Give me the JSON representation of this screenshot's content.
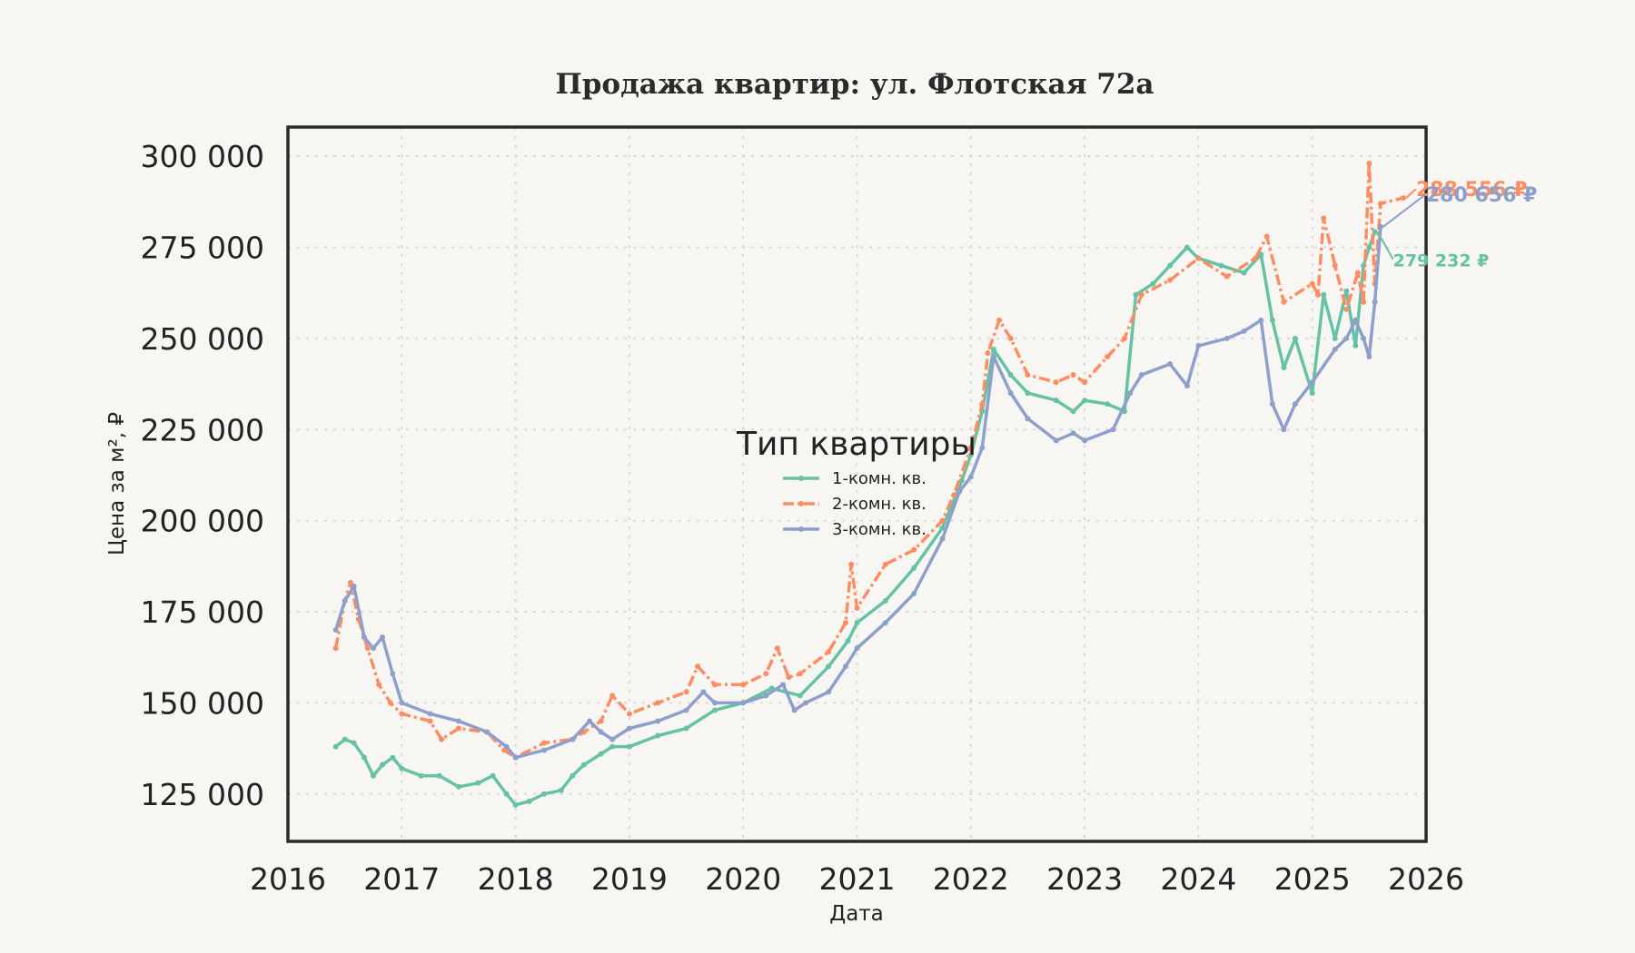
{
  "chart_data": {
    "type": "line",
    "title": "Продажа квартир: ул. Флотская 72а",
    "xlabel": "Дата",
    "ylabel": "Цена за м², ₽",
    "xlim": [
      2016,
      2026
    ],
    "ylim": [
      112000,
      308000
    ],
    "grid": true,
    "legend_position": "center",
    "legend_title": "Тип квартиры",
    "x_ticks": [
      "2016",
      "2017",
      "2018",
      "2019",
      "2020",
      "2021",
      "2022",
      "2023",
      "2024",
      "2025",
      "2026"
    ],
    "x_tick_values": [
      2016,
      2017,
      2018,
      2019,
      2020,
      2021,
      2022,
      2023,
      2024,
      2025,
      2026
    ],
    "y_ticks": [
      "125 000",
      "150 000",
      "175 000",
      "200 000",
      "225 000",
      "250 000",
      "275 000",
      "300 000"
    ],
    "y_tick_values": [
      125000,
      150000,
      175000,
      200000,
      225000,
      250000,
      275000,
      300000
    ],
    "series": [
      {
        "name": "1-комн. кв.",
        "color": "#66c2a5",
        "dash": "solid",
        "x": [
          2016.42,
          2016.5,
          2016.58,
          2016.67,
          2016.75,
          2016.83,
          2016.92,
          2017.0,
          2017.17,
          2017.33,
          2017.5,
          2017.67,
          2017.8,
          2017.92,
          2018.0,
          2018.12,
          2018.25,
          2018.4,
          2018.5,
          2018.6,
          2018.75,
          2018.85,
          2019.0,
          2019.25,
          2019.5,
          2019.75,
          2020.0,
          2020.25,
          2020.5,
          2020.75,
          2020.92,
          2021.0,
          2021.25,
          2021.5,
          2021.75,
          2021.92,
          2022.0,
          2022.1,
          2022.2,
          2022.35,
          2022.5,
          2022.75,
          2022.9,
          2023.0,
          2023.2,
          2023.35,
          2023.45,
          2023.6,
          2023.75,
          2023.9,
          2024.0,
          2024.2,
          2024.4,
          2024.55,
          2024.65,
          2024.75,
          2024.85,
          2025.0,
          2025.1,
          2025.2,
          2025.3,
          2025.38,
          2025.45,
          2025.5,
          2025.55
        ],
        "y": [
          138000,
          140000,
          139000,
          135000,
          130000,
          133000,
          135000,
          132000,
          130000,
          130000,
          127000,
          128000,
          130000,
          125000,
          122000,
          123000,
          125000,
          126000,
          130000,
          133000,
          136000,
          138000,
          138000,
          141000,
          143000,
          148000,
          150000,
          154000,
          152000,
          160000,
          167000,
          172000,
          178000,
          187000,
          198000,
          211000,
          218000,
          230000,
          247000,
          240000,
          235000,
          233000,
          230000,
          233000,
          232000,
          230000,
          262000,
          265000,
          270000,
          275000,
          272000,
          270000,
          268000,
          273000,
          255000,
          242000,
          250000,
          235000,
          262000,
          250000,
          263000,
          248000,
          270000,
          275000,
          279232
        ]
      },
      {
        "name": "2-комн. кв.",
        "color": "#fc8d62",
        "dash": "dashdot",
        "x": [
          2016.42,
          2016.5,
          2016.55,
          2016.62,
          2016.7,
          2016.8,
          2016.9,
          2017.0,
          2017.25,
          2017.35,
          2017.5,
          2017.75,
          2017.9,
          2018.0,
          2018.25,
          2018.5,
          2018.6,
          2018.75,
          2018.85,
          2019.0,
          2019.25,
          2019.5,
          2019.6,
          2019.75,
          2020.0,
          2020.2,
          2020.3,
          2020.4,
          2020.5,
          2020.75,
          2020.9,
          2020.95,
          2021.0,
          2021.25,
          2021.5,
          2021.75,
          2021.85,
          2022.0,
          2022.1,
          2022.15,
          2022.25,
          2022.35,
          2022.5,
          2022.75,
          2022.9,
          2023.0,
          2023.2,
          2023.35,
          2023.5,
          2023.75,
          2024.0,
          2024.25,
          2024.5,
          2024.6,
          2024.75,
          2025.0,
          2025.05,
          2025.1,
          2025.2,
          2025.3,
          2025.4,
          2025.45,
          2025.5,
          2025.55,
          2025.6,
          2025.8
        ],
        "y": [
          165000,
          178000,
          183000,
          173000,
          165000,
          155000,
          150000,
          147000,
          145000,
          140000,
          143000,
          142000,
          137000,
          135000,
          139000,
          140000,
          142000,
          145000,
          152000,
          147000,
          150000,
          153000,
          160000,
          155000,
          155000,
          158000,
          165000,
          157000,
          158000,
          164000,
          172000,
          188000,
          176000,
          188000,
          192000,
          200000,
          207000,
          220000,
          232000,
          246000,
          255000,
          250000,
          240000,
          238000,
          240000,
          238000,
          245000,
          250000,
          262000,
          266000,
          272000,
          267000,
          272000,
          278000,
          260000,
          265000,
          262000,
          283000,
          270000,
          258000,
          268000,
          260000,
          298000,
          265000,
          287000,
          288556
        ]
      },
      {
        "name": "3-комн. кв.",
        "color": "#8da0cb",
        "dash": "solid",
        "x": [
          2016.42,
          2016.5,
          2016.58,
          2016.67,
          2016.75,
          2016.83,
          2016.92,
          2017.0,
          2017.25,
          2017.5,
          2017.75,
          2017.92,
          2018.0,
          2018.25,
          2018.5,
          2018.65,
          2018.75,
          2018.85,
          2019.0,
          2019.25,
          2019.5,
          2019.65,
          2019.75,
          2020.0,
          2020.2,
          2020.35,
          2020.45,
          2020.55,
          2020.75,
          2020.9,
          2021.0,
          2021.25,
          2021.5,
          2021.75,
          2021.9,
          2022.0,
          2022.1,
          2022.2,
          2022.35,
          2022.5,
          2022.75,
          2022.9,
          2023.0,
          2023.25,
          2023.4,
          2023.5,
          2023.75,
          2023.9,
          2024.0,
          2024.25,
          2024.4,
          2024.55,
          2024.65,
          2024.75,
          2024.85,
          2025.0,
          2025.2,
          2025.3,
          2025.38,
          2025.45,
          2025.5,
          2025.55,
          2025.6
        ],
        "y": [
          170000,
          178000,
          182000,
          168000,
          165000,
          168000,
          158000,
          150000,
          147000,
          145000,
          142000,
          138000,
          135000,
          137000,
          140000,
          145000,
          142000,
          140000,
          143000,
          145000,
          148000,
          153000,
          150000,
          150000,
          152000,
          155000,
          148000,
          150000,
          153000,
          160000,
          165000,
          172000,
          180000,
          195000,
          208000,
          212000,
          220000,
          245000,
          235000,
          228000,
          222000,
          224000,
          222000,
          225000,
          235000,
          240000,
          243000,
          237000,
          248000,
          250000,
          252000,
          255000,
          232000,
          225000,
          232000,
          238000,
          247000,
          250000,
          255000,
          250000,
          245000,
          260000,
          280656
        ]
      }
    ],
    "annotations": [
      {
        "text": "279 232 ₽",
        "series": "1-комн. кв.",
        "x": 2025.55,
        "y": 279232
      },
      {
        "text": "288 556 ₽",
        "series": "2-комн. кв.",
        "x": 2025.8,
        "y": 288556
      },
      {
        "text": "280 656 ₽",
        "series": "3-комн. кв.",
        "x": 2025.6,
        "y": 280656
      }
    ]
  }
}
